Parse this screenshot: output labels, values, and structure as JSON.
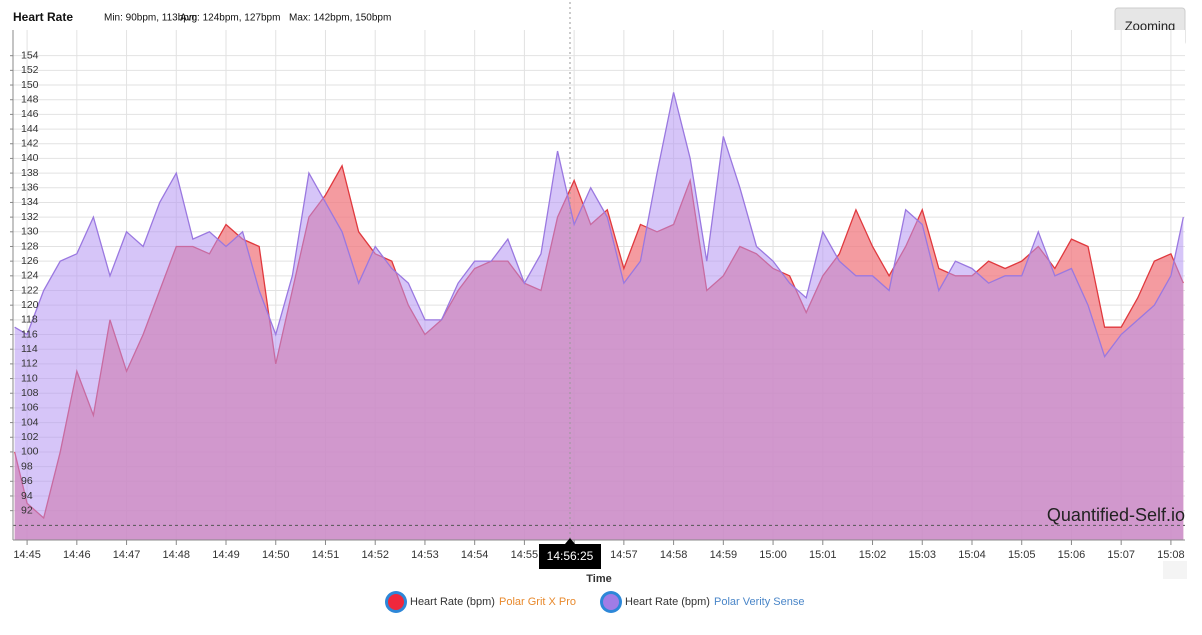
{
  "chart_data": {
    "type": "area",
    "title": "Heart Rate",
    "min_text": "Min: 90bpm, 113bpm",
    "avg_text": "Avg: 124bpm, 127bpm",
    "max_text": "Max: 142bpm, 150bpm",
    "button": "Zooming",
    "watermark": "Quantified-Self.io",
    "x_label": "Time",
    "tooltip_time": "14:56:25",
    "min_line": 90,
    "x": [
      "14:44:45",
      "14:45:00",
      "14:45:20",
      "14:45:40",
      "14:46:00",
      "14:46:20",
      "14:46:40",
      "14:47:00",
      "14:47:20",
      "14:47:40",
      "14:48:00",
      "14:48:20",
      "14:48:40",
      "14:49:00",
      "14:49:20",
      "14:49:40",
      "14:50:00",
      "14:50:20",
      "14:50:40",
      "14:51:00",
      "14:51:20",
      "14:51:40",
      "14:52:00",
      "14:52:20",
      "14:52:40",
      "14:53:00",
      "14:53:20",
      "14:53:40",
      "14:54:00",
      "14:54:20",
      "14:54:40",
      "14:55:00",
      "14:55:20",
      "14:55:40",
      "14:56:00",
      "14:56:20",
      "14:56:40",
      "14:57:00",
      "14:57:20",
      "14:57:40",
      "14:58:00",
      "14:58:20",
      "14:58:40",
      "14:59:00",
      "14:59:20",
      "14:59:40",
      "15:00:00",
      "15:00:20",
      "15:00:40",
      "15:01:00",
      "15:01:20",
      "15:01:40",
      "15:02:00",
      "15:02:20",
      "15:02:40",
      "15:03:00",
      "15:03:20",
      "15:03:40",
      "15:04:00",
      "15:04:20",
      "15:04:40",
      "15:05:00",
      "15:05:20",
      "15:05:40",
      "15:06:00",
      "15:06:20",
      "15:06:40",
      "15:07:00",
      "15:07:20",
      "15:07:40",
      "15:08:00",
      "15:08:15"
    ],
    "series": [
      {
        "metric": "Heart Rate (bpm)",
        "name": "Polar Grit X Pro",
        "color": "#e0393e",
        "fill": "#f07a80",
        "name_color": "#e8892c",
        "values": [
          100,
          93,
          91,
          100,
          111,
          105,
          118,
          111,
          116,
          122,
          128,
          128,
          127,
          131,
          129,
          128,
          112,
          122,
          132,
          135,
          139,
          130,
          127,
          126,
          120,
          116,
          118,
          122,
          125,
          126,
          126,
          123,
          122,
          132,
          137,
          131,
          133,
          125,
          131,
          130,
          131,
          137,
          122,
          124,
          128,
          127,
          125,
          124,
          119,
          124,
          127,
          133,
          128,
          124,
          128,
          133,
          125,
          124,
          124,
          126,
          125,
          126,
          128,
          125,
          129,
          128,
          117,
          117,
          121,
          126,
          127,
          123
        ]
      },
      {
        "metric": "Heart Rate (bpm)",
        "name": "Polar Verity Sense",
        "color": "#9a78e0",
        "fill": "#b596f2",
        "name_color": "#4a86c8",
        "values": [
          117,
          116,
          122,
          126,
          127,
          132,
          124,
          130,
          128,
          134,
          138,
          129,
          130,
          128,
          130,
          122,
          116,
          124,
          138,
          134,
          130,
          123,
          128,
          125,
          123,
          118,
          118,
          123,
          126,
          126,
          129,
          123,
          127,
          141,
          131,
          136,
          132,
          123,
          126,
          138,
          149,
          140,
          126,
          143,
          136,
          128,
          126,
          123,
          121,
          130,
          126,
          124,
          124,
          122,
          133,
          131,
          122,
          126,
          125,
          123,
          124,
          124,
          130,
          124,
          125,
          120,
          113,
          116,
          118,
          120,
          124,
          132
        ]
      }
    ],
    "xlim": [
      "14:44:43",
      "15:08:17"
    ],
    "xticks": [
      "14:45",
      "14:46",
      "14:47",
      "14:48",
      "14:49",
      "14:50",
      "14:51",
      "14:52",
      "14:53",
      "14:54",
      "14:55",
      "14:56",
      "14:57",
      "14:58",
      "14:59",
      "15:00",
      "15:01",
      "15:02",
      "15:03",
      "15:04",
      "15:05",
      "15:06",
      "15:07",
      "15:08"
    ],
    "ylim": [
      88,
      157.5
    ],
    "yticks": [
      92,
      94,
      96,
      98,
      100,
      102,
      104,
      106,
      108,
      110,
      112,
      114,
      116,
      118,
      120,
      122,
      124,
      126,
      128,
      130,
      132,
      134,
      136,
      138,
      140,
      142,
      144,
      146,
      148,
      150,
      152,
      154
    ],
    "grid": true
  }
}
